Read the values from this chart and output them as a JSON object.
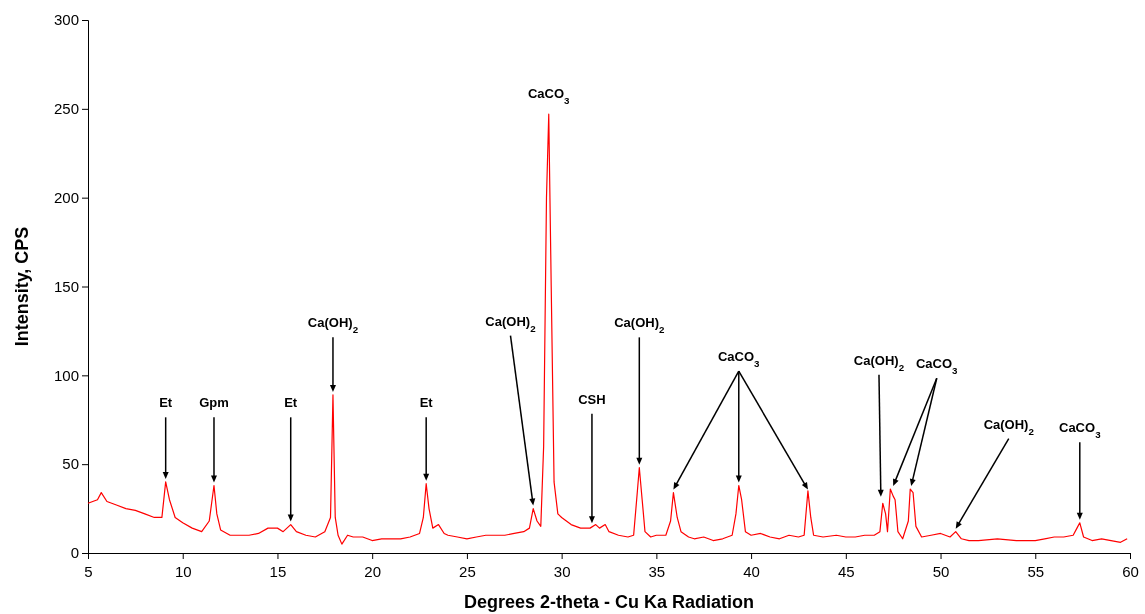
{
  "chart_data": {
    "type": "line",
    "xlabel": "Degrees 2-theta - Cu Ka Radiation",
    "ylabel": "Intensity, CPS",
    "xlim": [
      5,
      60
    ],
    "xticks": [
      5,
      10,
      15,
      20,
      25,
      30,
      35,
      40,
      45,
      50,
      55,
      60
    ],
    "ylim": [
      0,
      300
    ],
    "yticks": [
      0,
      50,
      100,
      150,
      200,
      250,
      300
    ],
    "grid": false,
    "marker": "none",
    "line_style": "solid",
    "series": [
      {
        "color": "#ff0000",
        "x": [
          5,
          5.5,
          5.7,
          6,
          6.5,
          7,
          7.5,
          8,
          8.5,
          8.9,
          9.1,
          9.3,
          9.6,
          10,
          10.5,
          11,
          11.4,
          11.65,
          11.8,
          12,
          12.5,
          13,
          13.5,
          14,
          14.5,
          15,
          15.3,
          15.7,
          16,
          16.5,
          17,
          17.5,
          17.8,
          17.93,
          18.05,
          18.2,
          18.4,
          18.7,
          19,
          19.5,
          20,
          20.5,
          21,
          21.5,
          22,
          22.5,
          22.7,
          22.85,
          23,
          23.2,
          23.5,
          23.8,
          24,
          24.5,
          25,
          25.5,
          26,
          26.5,
          27,
          27.5,
          28,
          28.3,
          28.5,
          28.7,
          28.9,
          29.05,
          29.2,
          29.32,
          29.45,
          29.6,
          29.8,
          30,
          30.5,
          31,
          31.5,
          31.8,
          32,
          32.3,
          32.5,
          33,
          33.5,
          33.8,
          34,
          34.1,
          34.25,
          34.4,
          34.7,
          35,
          35.5,
          35.75,
          35.9,
          36.1,
          36.3,
          36.7,
          37,
          37.5,
          38,
          38.5,
          39,
          39.2,
          39.35,
          39.5,
          39.7,
          40,
          40.5,
          41,
          41.5,
          42,
          42.5,
          42.8,
          43,
          43.15,
          43.3,
          43.8,
          44.5,
          45,
          45.5,
          46,
          46.5,
          46.8,
          46.95,
          47.1,
          47.2,
          47.35,
          47.5,
          47.6,
          47.75,
          48,
          48.3,
          48.4,
          48.55,
          48.7,
          49,
          49.5,
          50,
          50.5,
          50.8,
          51.1,
          51.5,
          52,
          53,
          54,
          55,
          55.5,
          56,
          56.5,
          57,
          57.2,
          57.35,
          57.55,
          58,
          58.5,
          59,
          59.5,
          59.85
        ],
        "values": [
          28,
          30,
          34,
          29,
          27,
          25,
          24,
          22,
          20,
          20,
          40,
          30,
          20,
          17,
          14,
          12,
          18,
          38,
          22,
          13,
          10,
          10,
          10,
          11,
          14,
          14,
          12,
          16,
          12,
          10,
          9,
          12,
          20,
          89,
          20,
          10,
          5,
          10,
          9,
          9,
          7,
          8,
          8,
          8,
          9,
          11,
          20,
          39,
          25,
          14,
          16,
          11,
          10,
          9,
          8,
          9,
          10,
          10,
          10,
          11,
          12,
          14,
          25,
          18,
          15,
          60,
          200,
          247,
          150,
          40,
          22,
          20,
          16,
          14,
          14,
          16,
          14,
          16,
          12,
          10,
          9,
          10,
          35,
          48,
          30,
          12,
          9,
          10,
          10,
          18,
          34,
          20,
          12,
          9,
          8,
          9,
          7,
          8,
          10,
          22,
          38,
          30,
          12,
          10,
          11,
          9,
          8,
          10,
          9,
          10,
          35,
          20,
          10,
          9,
          10,
          9,
          9,
          10,
          10,
          12,
          28,
          22,
          12,
          36,
          32,
          30,
          12,
          8,
          18,
          36,
          34,
          15,
          9,
          10,
          11,
          9,
          12,
          8,
          7,
          7,
          8,
          7,
          7,
          8,
          9,
          9,
          10,
          14,
          17,
          9,
          7,
          8,
          7,
          6,
          8
        ]
      }
    ],
    "annotations": [
      {
        "text": "Et",
        "x": 9.1,
        "y": 40
      },
      {
        "text": "Gpm",
        "x": 11.65,
        "y": 38
      },
      {
        "text": "Et",
        "x": 15.7,
        "y": 16
      },
      {
        "text": "Ca(OH)$_{2}$",
        "x": 17.93,
        "y": 89
      },
      {
        "text": "Et",
        "x": 22.85,
        "y": 39
      },
      {
        "text": "Ca(OH)$_{2}$",
        "x": 28.5,
        "y": 25
      },
      {
        "text": "CaCO$_{3}$",
        "x": 29.32,
        "y": 247
      },
      {
        "text": "CSH",
        "x": 31.6,
        "y": 15
      },
      {
        "text": "Ca(OH)$_{2}$",
        "x": 34.1,
        "y": 48
      },
      {
        "text": "CaCO$_{3}$",
        "x": 39.35,
        "y": 38
      },
      {
        "text": "Ca(OH)$_{2}$",
        "x": 46.85,
        "y": 30
      },
      {
        "text": "CaCO$_{3}$",
        "x": 47.5,
        "y": 36
      },
      {
        "text": "Ca(OH)$_{2}$",
        "x": 50.8,
        "y": 12
      },
      {
        "text": "CaCO$_{3}$",
        "x": 57.35,
        "y": 17
      }
    ]
  }
}
